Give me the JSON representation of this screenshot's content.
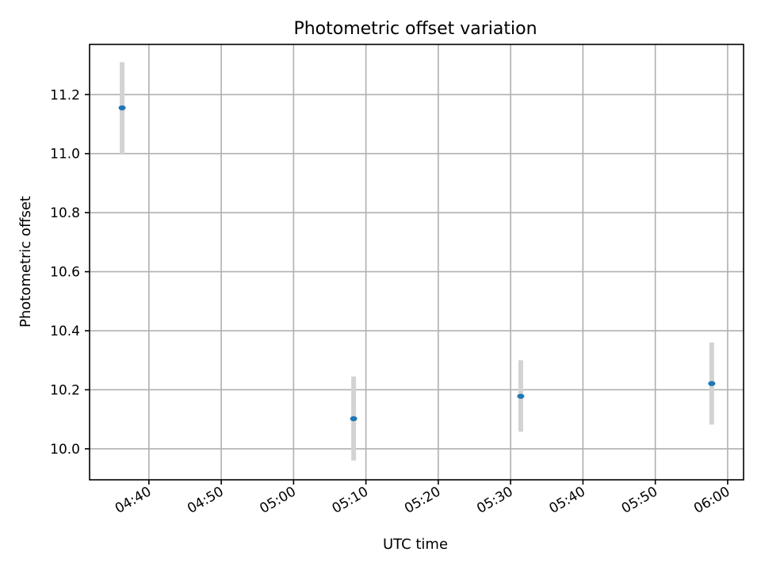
{
  "chart_data": {
    "type": "scatter",
    "title": "Photometric offset variation",
    "xlabel": "UTC time",
    "ylabel": "Photometric offset",
    "x_ticks": [
      "04:40",
      "04:50",
      "05:00",
      "05:10",
      "05:20",
      "05:30",
      "05:40",
      "05:50",
      "06:00"
    ],
    "y_ticks": [
      "10.0",
      "10.2",
      "10.4",
      "10.6",
      "10.8",
      "11.0",
      "11.2"
    ],
    "xlim": [
      "04:31:48",
      "06:02:12"
    ],
    "ylim": [
      9.895,
      11.37
    ],
    "grid": true,
    "points": [
      {
        "x": "04:36:18",
        "y": 11.155,
        "y_low": 11.0,
        "y_high": 11.31
      },
      {
        "x": "05:08:18",
        "y": 10.102,
        "y_low": 9.96,
        "y_high": 10.245
      },
      {
        "x": "05:31:24",
        "y": 10.178,
        "y_low": 10.058,
        "y_high": 10.3
      },
      {
        "x": "05:57:48",
        "y": 10.221,
        "y_low": 10.082,
        "y_high": 10.36
      }
    ],
    "colors": {
      "point": "#1f77b4",
      "errorbar": "#d3d3d3",
      "grid": "#b0b0b0"
    }
  }
}
